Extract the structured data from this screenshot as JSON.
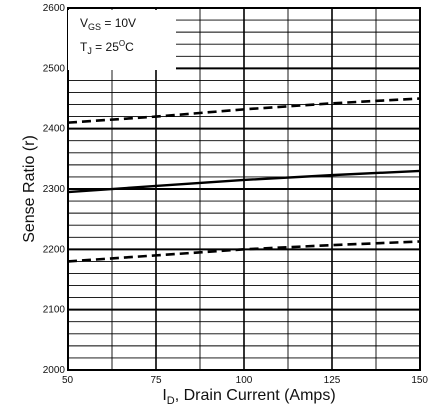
{
  "chart_data": {
    "type": "line",
    "annotations": [
      {
        "base": "V",
        "sub": "GS",
        "rest": " = 10V"
      },
      {
        "base": "T",
        "sub": "J",
        "rest": " = 25",
        "sup": "O",
        "tail": "C"
      }
    ],
    "xlabel": {
      "base": "I",
      "sub": "D",
      "rest": ", Drain Current (Amps)"
    },
    "ylabel": "Sense Ratio (r)",
    "xlim": [
      50,
      150
    ],
    "ylim": [
      2000,
      2600
    ],
    "x_ticks": [
      50,
      75,
      100,
      125,
      150
    ],
    "y_ticks": [
      2000,
      2100,
      2200,
      2300,
      2400,
      2500,
      2600
    ],
    "x_tick_labels": [
      "50",
      "75",
      "100",
      "125",
      "150"
    ],
    "y_tick_labels": [
      "2000",
      "2100",
      "2200",
      "2300",
      "2400",
      "2500",
      "2600"
    ],
    "grid": true,
    "series": [
      {
        "style": "dashed",
        "x": [
          50,
          75,
          100,
          125,
          150
        ],
        "y": [
          2410,
          2420,
          2432,
          2442,
          2450
        ]
      },
      {
        "style": "solid",
        "x": [
          50,
          75,
          100,
          125,
          150
        ],
        "y": [
          2295,
          2305,
          2315,
          2323,
          2330
        ]
      },
      {
        "style": "dashed",
        "x": [
          50,
          75,
          100,
          125,
          150
        ],
        "y": [
          2180,
          2190,
          2200,
          2207,
          2213
        ]
      }
    ]
  }
}
